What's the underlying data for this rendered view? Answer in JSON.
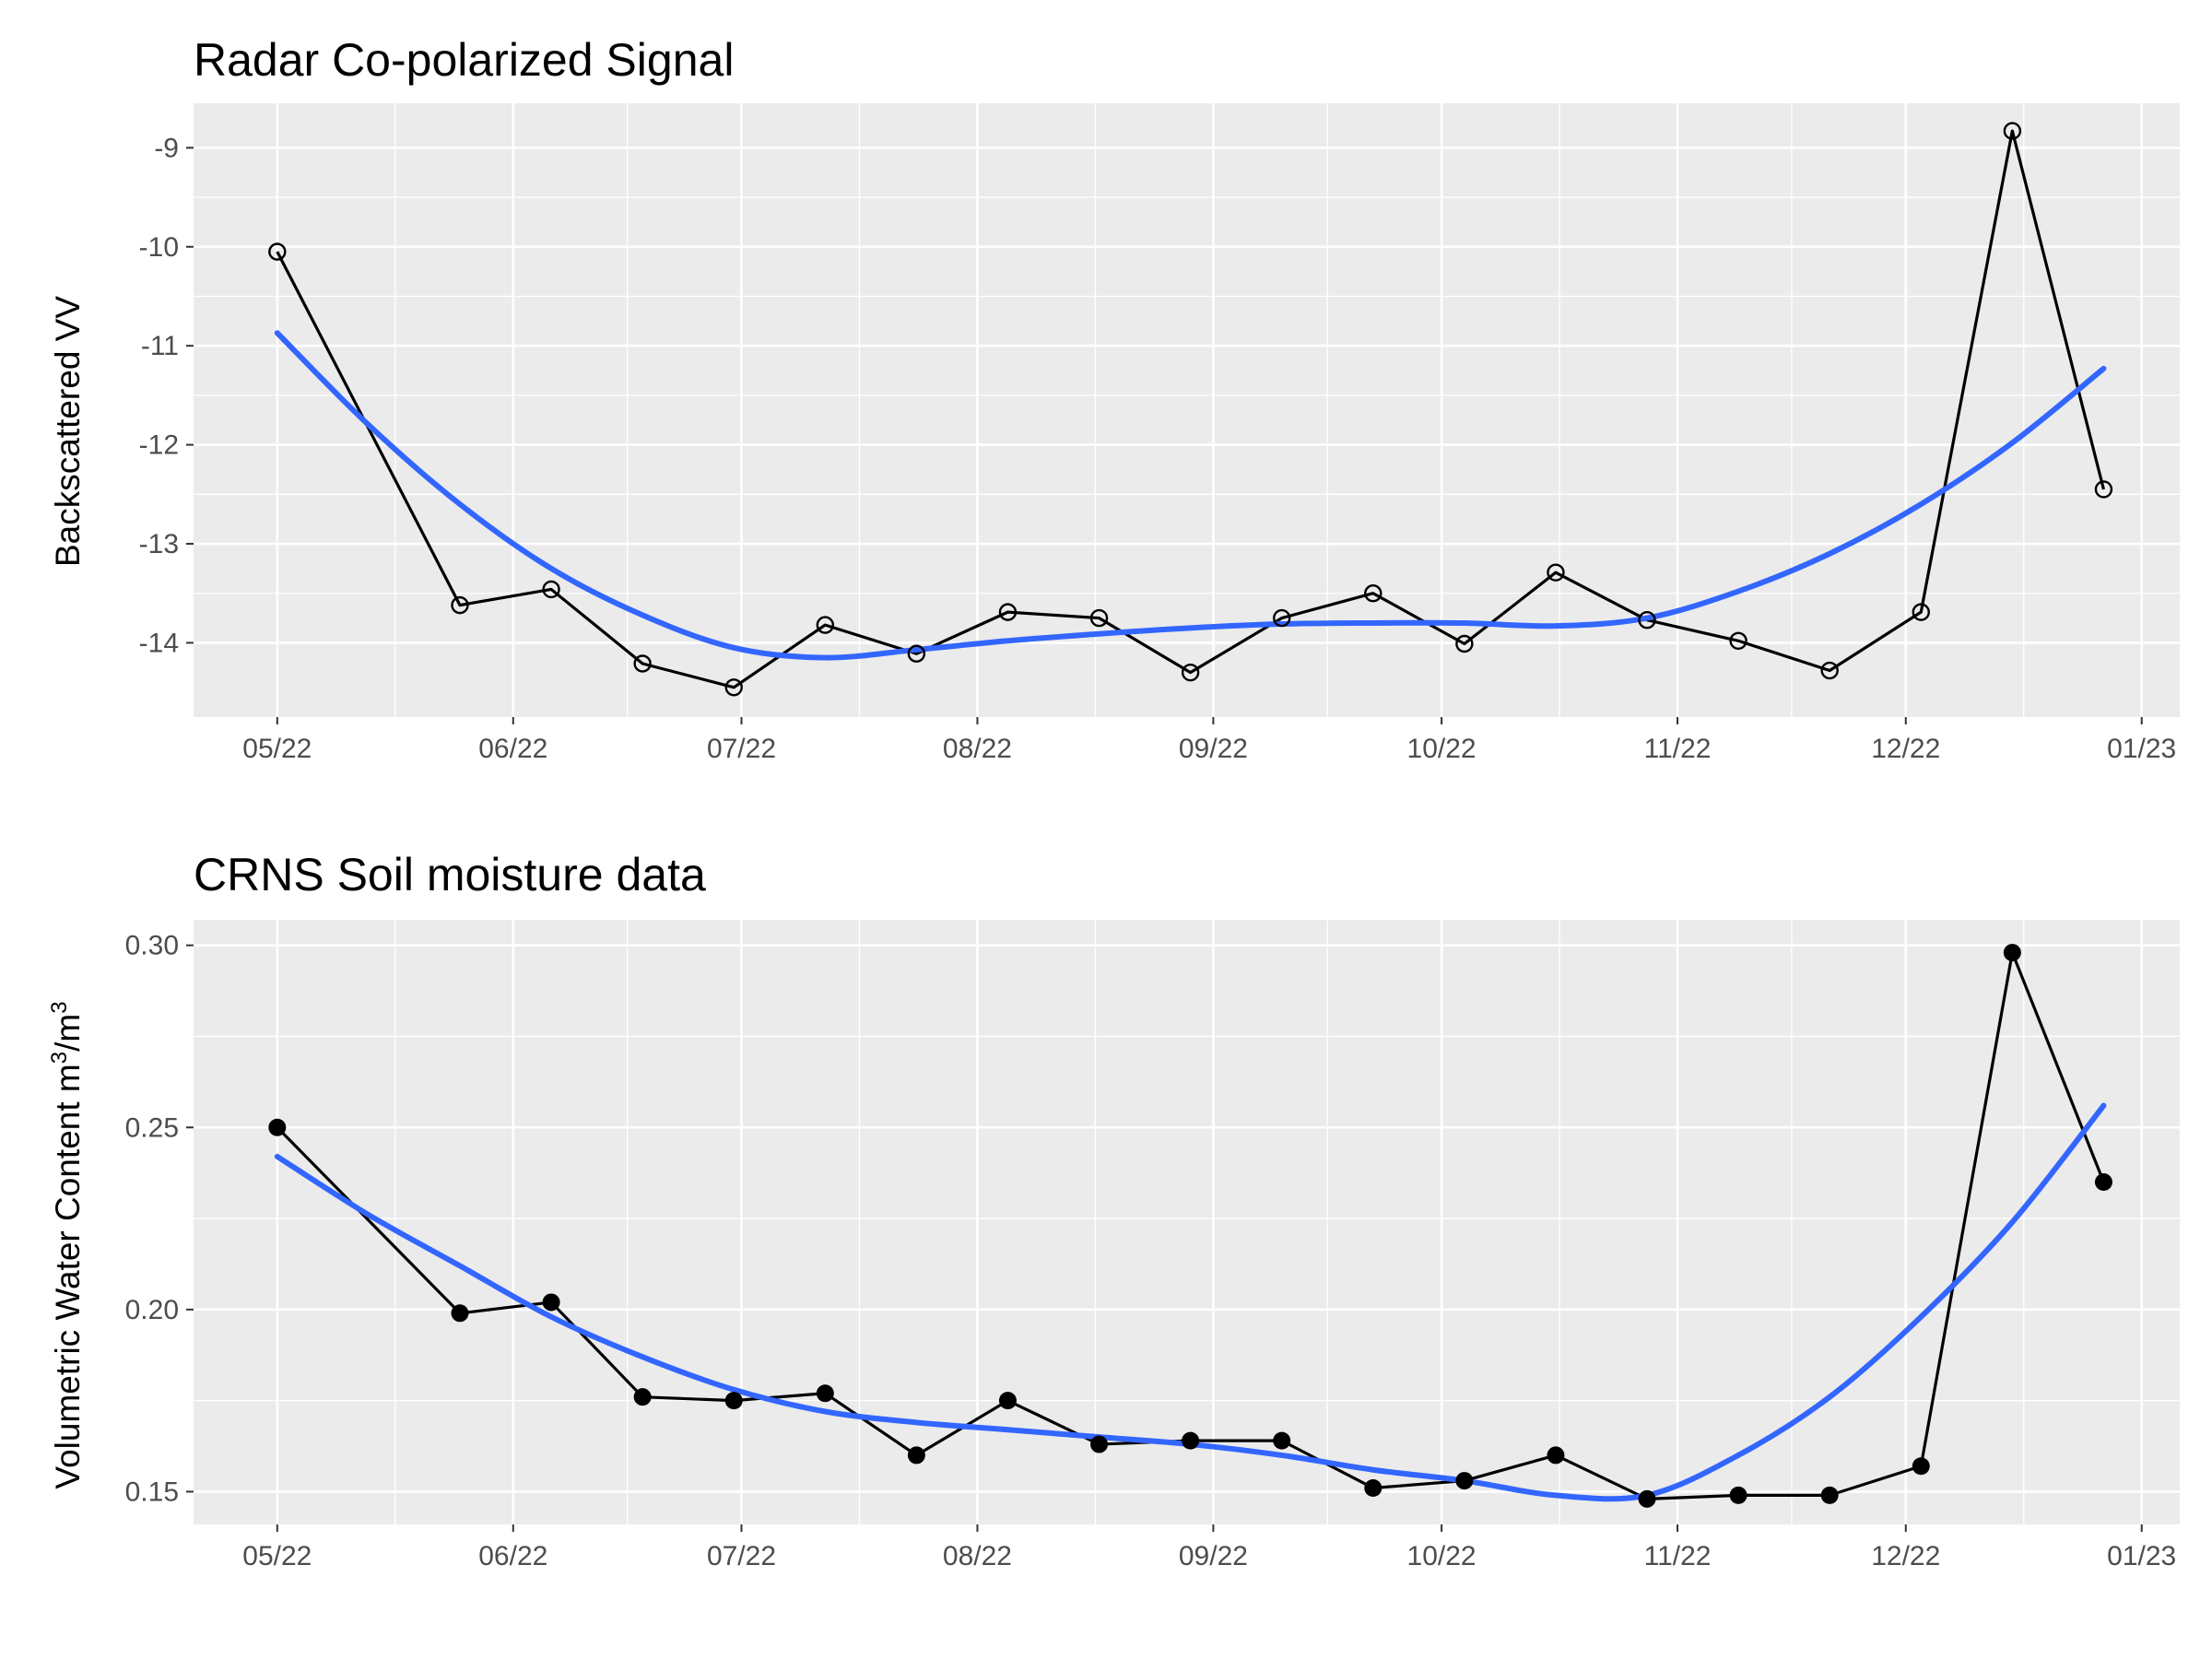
{
  "chart_data": [
    {
      "type": "line",
      "title": "Radar Co-polarized Signal",
      "xlabel": "",
      "ylabel": "Backscattered VV",
      "x_tick_labels": [
        "05/22",
        "06/22",
        "07/22",
        "08/22",
        "09/22",
        "10/22",
        "11/22",
        "12/22",
        "01/23"
      ],
      "x_ticks": [
        "2022-05-01",
        "2022-06-01",
        "2022-07-01",
        "2022-08-01",
        "2022-09-01",
        "2022-10-01",
        "2022-11-01",
        "2022-12-01",
        "2023-01-01"
      ],
      "y_ticks": [
        -14,
        -13,
        -12,
        -11,
        -10,
        -9
      ],
      "xlim": [
        "2022-04-20",
        "2023-01-06"
      ],
      "ylim": [
        -14.75,
        -8.55
      ],
      "grid": true,
      "legend": "none",
      "point_style": "open",
      "series": [
        {
          "x": [
            "2022-05-01",
            "2022-05-25",
            "2022-06-06",
            "2022-06-18",
            "2022-06-30",
            "2022-07-12",
            "2022-07-24",
            "2022-08-05",
            "2022-08-17",
            "2022-08-29",
            "2022-09-10",
            "2022-09-22",
            "2022-10-04",
            "2022-10-16",
            "2022-10-28",
            "2022-11-09",
            "2022-11-21",
            "2022-12-03",
            "2022-12-15",
            "2022-12-27"
          ],
          "values": [
            -10.05,
            -13.62,
            -13.46,
            -14.21,
            -14.45,
            -13.82,
            -14.11,
            -13.69,
            -13.75,
            -14.3,
            -13.75,
            -13.5,
            -14.01,
            -13.29,
            -13.77,
            -13.98,
            -14.28,
            -13.69,
            -8.83,
            -12.45
          ]
        },
        {
          "smooth": true,
          "color": "#3366ff",
          "x": [
            "2022-05-01",
            "2022-05-13",
            "2022-05-25",
            "2022-06-06",
            "2022-06-18",
            "2022-06-30",
            "2022-07-12",
            "2022-07-24",
            "2022-08-05",
            "2022-08-17",
            "2022-08-29",
            "2022-09-10",
            "2022-09-22",
            "2022-10-04",
            "2022-10-16",
            "2022-10-28",
            "2022-11-09",
            "2022-11-21",
            "2022-12-03",
            "2022-12-15",
            "2022-12-27"
          ],
          "values": [
            -10.87,
            -11.8,
            -12.6,
            -13.25,
            -13.72,
            -14.05,
            -14.15,
            -14.07,
            -13.98,
            -13.91,
            -13.85,
            -13.81,
            -13.8,
            -13.8,
            -13.83,
            -13.75,
            -13.48,
            -13.1,
            -12.6,
            -11.98,
            -11.23
          ]
        }
      ]
    },
    {
      "type": "line",
      "title": "CRNS Soil moisture data",
      "xlabel": "",
      "ylabel": "Volumetric Water Content  m",
      "ylabel_sup1": "3",
      "ylabel_mid": "/m",
      "ylabel_sup2": "3",
      "x_tick_labels": [
        "05/22",
        "06/22",
        "07/22",
        "08/22",
        "09/22",
        "10/22",
        "11/22",
        "12/22",
        "01/23"
      ],
      "x_ticks": [
        "2022-05-01",
        "2022-06-01",
        "2022-07-01",
        "2022-08-01",
        "2022-09-01",
        "2022-10-01",
        "2022-11-01",
        "2022-12-01",
        "2023-01-01"
      ],
      "y_tick_labels": [
        "0.15",
        "0.20",
        "0.25",
        "0.30"
      ],
      "y_ticks": [
        0.15,
        0.2,
        0.25,
        0.3
      ],
      "xlim": [
        "2022-04-20",
        "2023-01-06"
      ],
      "ylim": [
        0.141,
        0.307
      ],
      "grid": true,
      "legend": "none",
      "point_style": "filled",
      "series": [
        {
          "x": [
            "2022-05-01",
            "2022-05-25",
            "2022-06-06",
            "2022-06-18",
            "2022-06-30",
            "2022-07-12",
            "2022-07-24",
            "2022-08-05",
            "2022-08-17",
            "2022-08-29",
            "2022-09-10",
            "2022-09-22",
            "2022-10-04",
            "2022-10-16",
            "2022-10-28",
            "2022-11-09",
            "2022-11-21",
            "2022-12-03",
            "2022-12-15",
            "2022-12-27"
          ],
          "values": [
            0.25,
            0.199,
            0.202,
            0.176,
            0.175,
            0.177,
            0.16,
            0.175,
            0.163,
            0.164,
            0.164,
            0.151,
            0.153,
            0.16,
            0.148,
            0.149,
            0.149,
            0.157,
            0.298,
            0.235
          ]
        },
        {
          "smooth": true,
          "color": "#3366ff",
          "x": [
            "2022-05-01",
            "2022-05-13",
            "2022-05-25",
            "2022-06-06",
            "2022-06-18",
            "2022-06-30",
            "2022-07-12",
            "2022-07-24",
            "2022-08-05",
            "2022-08-17",
            "2022-08-29",
            "2022-09-10",
            "2022-09-22",
            "2022-10-04",
            "2022-10-16",
            "2022-10-28",
            "2022-11-09",
            "2022-11-21",
            "2022-12-03",
            "2022-12-15",
            "2022-12-27"
          ],
          "values": [
            0.242,
            0.226,
            0.212,
            0.198,
            0.187,
            0.178,
            0.172,
            0.169,
            0.167,
            0.165,
            0.163,
            0.16,
            0.156,
            0.153,
            0.149,
            0.149,
            0.16,
            0.176,
            0.198,
            0.224,
            0.256
          ]
        }
      ]
    }
  ]
}
